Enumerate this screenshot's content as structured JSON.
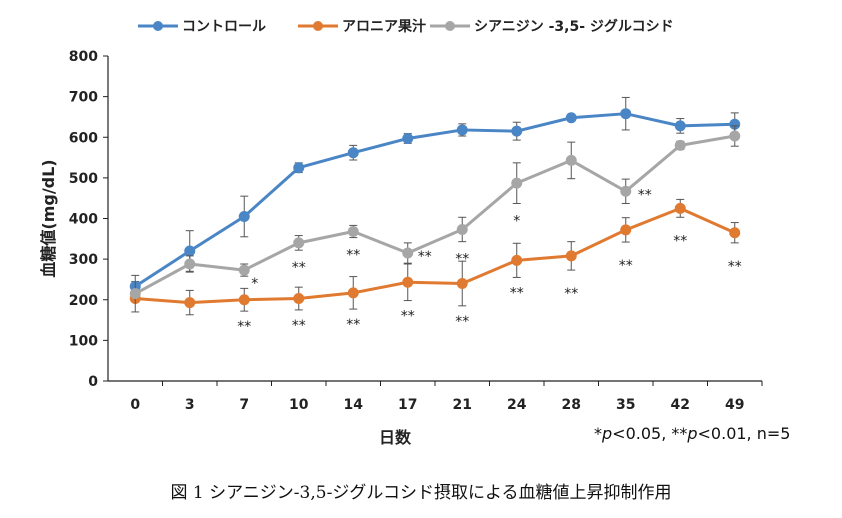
{
  "chart_data": {
    "type": "line",
    "xlabel": "日数",
    "ylabel": "血糖値(mg/dL)",
    "categories": [
      "0",
      "3",
      "7",
      "10",
      "14",
      "17",
      "21",
      "24",
      "28",
      "35",
      "42",
      "49"
    ],
    "ylim": [
      0,
      800
    ],
    "yticks": [
      "0",
      "100",
      "200",
      "300",
      "400",
      "500",
      "600",
      "700",
      "800"
    ],
    "grid": false,
    "legend_position": "top",
    "series": [
      {
        "name": "コントロール",
        "color": "#4a86c5",
        "values": [
          233,
          320,
          405,
          525,
          562,
          597,
          618,
          615,
          648,
          658,
          628,
          632
        ],
        "errors": [
          12,
          50,
          50,
          12,
          18,
          12,
          15,
          22,
          8,
          40,
          18,
          28
        ],
        "sig": [
          "",
          "",
          "",
          "",
          "",
          "",
          "",
          "",
          "",
          "",
          "",
          ""
        ]
      },
      {
        "name": "アロニア果汁",
        "color": "#e07a30",
        "values": [
          203,
          193,
          200,
          203,
          217,
          243,
          240,
          297,
          308,
          372,
          425,
          365
        ],
        "errors": [
          5,
          30,
          28,
          28,
          40,
          45,
          55,
          42,
          35,
          30,
          22,
          25
        ],
        "sig": [
          "",
          "",
          "**",
          "**",
          "**",
          "**",
          "**",
          "**",
          "**",
          "**",
          "**",
          "**"
        ]
      },
      {
        "name": "シアニジン -3,5- ジグルコシド",
        "color": "#a6a6a6",
        "values": [
          215,
          288,
          273,
          340,
          368,
          315,
          373,
          487,
          543,
          467,
          580,
          603
        ],
        "errors": [
          45,
          20,
          15,
          18,
          15,
          25,
          30,
          50,
          45,
          30,
          10,
          25
        ],
        "sig": [
          "",
          "",
          "*",
          "**",
          "**",
          "**",
          "**",
          "*",
          "",
          "**",
          "",
          ""
        ]
      }
    ],
    "note": {
      "star1": "*",
      "p1": "p",
      "rest1": "<0.05, ",
      "star2": "**",
      "p2": "p",
      "rest2": "<0.01, n=5"
    }
  },
  "caption": "図 1  シアニジン-3,5-ジグルコシド摂取による血糖値上昇抑制作用"
}
